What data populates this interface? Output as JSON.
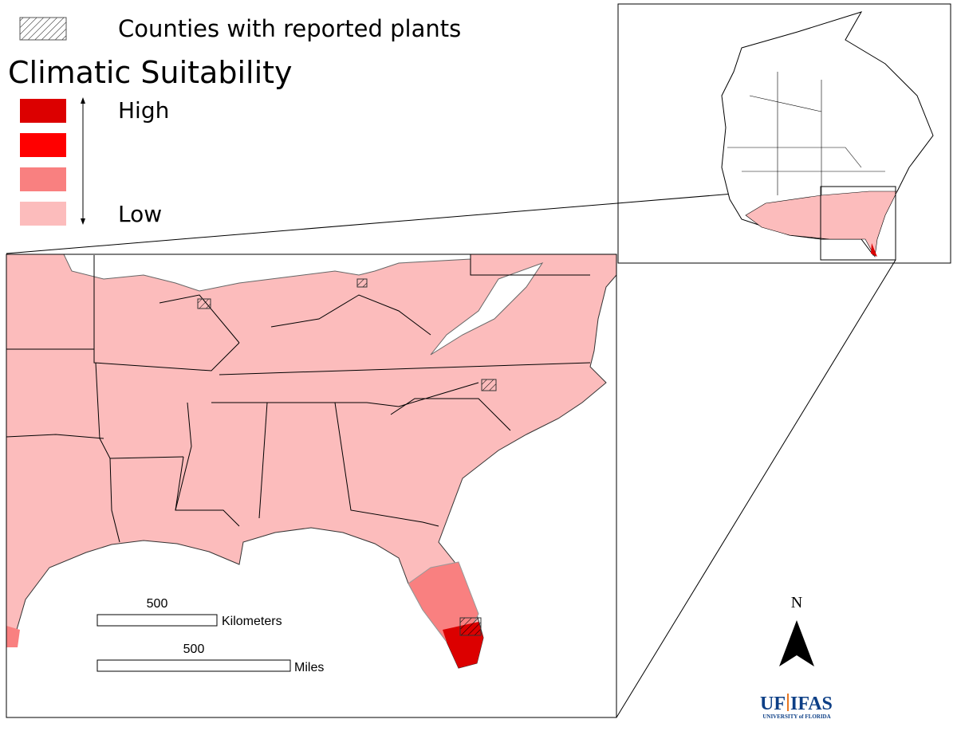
{
  "legend": {
    "hatch_label": "Counties with reported plants",
    "title": "Climatic Suitability",
    "high_label": "High",
    "low_label": "Low",
    "colors": [
      "#dc0000",
      "#ff0000",
      "#f98080",
      "#fcbcbc"
    ]
  },
  "scale_bar": {
    "km_value": 500,
    "km_unit": "Kilometers",
    "mi_value": 500,
    "mi_unit": "Miles"
  },
  "north_arrow": {
    "label": "N"
  },
  "logo": {
    "left": "UF",
    "right": "IFAS",
    "subtitle": "UNIVERSITY of FLORIDA"
  }
}
